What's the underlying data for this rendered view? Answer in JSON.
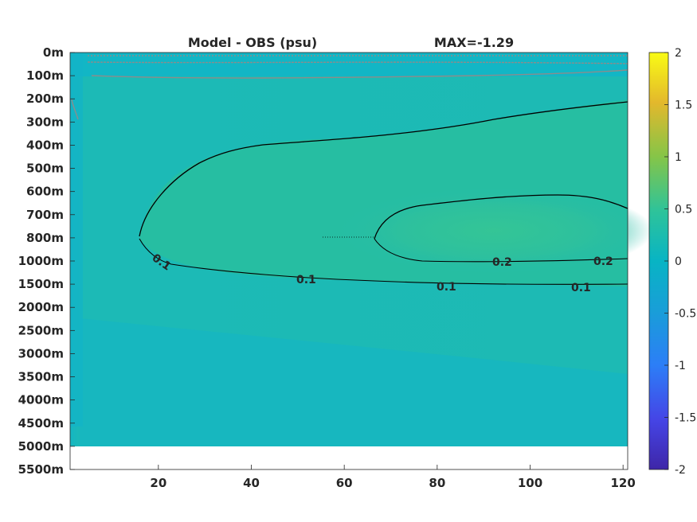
{
  "chart_data": {
    "type": "heatmap",
    "title": "Model - OBS (psu)",
    "max_label": "MAX=-1.29",
    "x_ticks": [
      20,
      40,
      60,
      80,
      100,
      120
    ],
    "x_range": [
      1,
      121
    ],
    "y_tick_labels": [
      "0m",
      "100m",
      "200m",
      "300m",
      "400m",
      "500m",
      "600m",
      "700m",
      "800m",
      "1000m",
      "1500m",
      "2000m",
      "2500m",
      "3000m",
      "3500m",
      "4000m",
      "4500m",
      "5000m",
      "5500m"
    ],
    "data_bottom_label": "5000m",
    "colorbar": {
      "ticks": [
        2,
        1.5,
        1,
        0.5,
        0,
        -0.5,
        -1,
        -1.5,
        -2
      ],
      "range": [
        -2,
        2
      ],
      "colormap": "parula"
    },
    "contours": [
      {
        "level": 0.1,
        "labels": [
          "0.1",
          "0.1",
          "0.1",
          "0.1"
        ]
      },
      {
        "level": 0.2,
        "labels": [
          "0.2",
          "0.2"
        ]
      }
    ],
    "colors": {
      "background_field": "#1fb9b4",
      "deep_field": "#19b8c0",
      "core_field": "#2ec39a",
      "surface_contours": "#8c8c8c",
      "contour_lines": "#000000"
    }
  }
}
